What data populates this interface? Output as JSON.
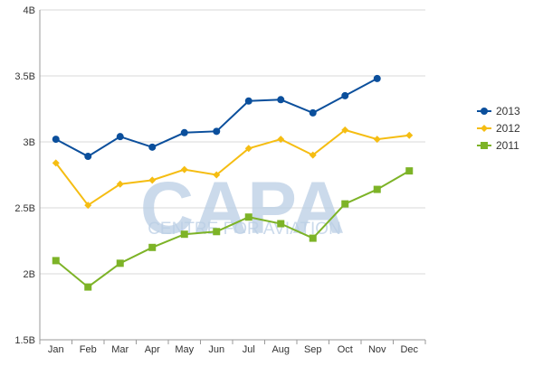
{
  "watermark": {
    "logo_text": "CAPA",
    "tagline": "CENTRE FOR AVIATION"
  },
  "chart_data": {
    "type": "line",
    "categories": [
      "Jan",
      "Feb",
      "Mar",
      "Apr",
      "May",
      "Jun",
      "Jul",
      "Aug",
      "Sep",
      "Oct",
      "Nov",
      "Dec"
    ],
    "y_ticks": [
      {
        "value": 1.5,
        "label": "1.5B"
      },
      {
        "value": 2,
        "label": "2B"
      },
      {
        "value": 2.5,
        "label": "2.5B"
      },
      {
        "value": 3,
        "label": "3B"
      },
      {
        "value": 3.5,
        "label": "3.5B"
      },
      {
        "value": 4,
        "label": "4B"
      }
    ],
    "ylim": [
      1.5,
      4
    ],
    "grid": "horizontal",
    "legend_position": "right",
    "series": [
      {
        "name": "2013",
        "color": "#0b4f9c",
        "marker": "circle",
        "values": [
          3.02,
          2.89,
          3.04,
          2.96,
          3.07,
          3.08,
          3.31,
          3.32,
          3.22,
          3.35,
          3.48,
          null
        ]
      },
      {
        "name": "2012",
        "color": "#f5bd12",
        "marker": "diamond",
        "values": [
          2.84,
          2.52,
          2.68,
          2.71,
          2.79,
          2.75,
          2.95,
          3.02,
          2.9,
          3.09,
          3.02,
          3.05
        ]
      },
      {
        "name": "2011",
        "color": "#7db327",
        "marker": "square",
        "values": [
          2.1,
          1.9,
          2.08,
          2.2,
          2.3,
          2.32,
          2.43,
          2.38,
          2.27,
          2.53,
          2.64,
          2.78
        ]
      }
    ]
  }
}
